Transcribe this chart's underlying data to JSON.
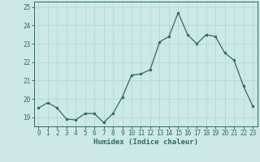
{
  "x": [
    0,
    1,
    2,
    3,
    4,
    5,
    6,
    7,
    8,
    9,
    10,
    11,
    12,
    13,
    14,
    15,
    16,
    17,
    18,
    19,
    20,
    21,
    22,
    23
  ],
  "y": [
    19.5,
    19.8,
    19.5,
    18.9,
    18.85,
    19.2,
    19.2,
    18.7,
    19.2,
    20.1,
    21.3,
    21.35,
    21.6,
    23.1,
    23.4,
    24.7,
    23.5,
    23.0,
    23.5,
    23.4,
    22.5,
    22.1,
    20.7,
    19.6
  ],
  "line_color": "#2e6b5e",
  "marker_color": "#2e6b5e",
  "bg_color": "#cce9e7",
  "grid_color": "#aed4d1",
  "xlabel": "Humidex (Indice chaleur)",
  "xlim": [
    -0.5,
    23.5
  ],
  "ylim": [
    18.5,
    25.3
  ],
  "yticks": [
    19,
    20,
    21,
    22,
    23,
    24,
    25
  ],
  "xtick_labels": [
    "0",
    "1",
    "2",
    "3",
    "4",
    "5",
    "6",
    "7",
    "8",
    "9",
    "10",
    "11",
    "12",
    "13",
    "14",
    "15",
    "16",
    "17",
    "18",
    "19",
    "20",
    "21",
    "22",
    "23"
  ],
  "tick_color": "#2e6b5e",
  "label_fontsize": 6.5,
  "tick_fontsize": 5.5
}
